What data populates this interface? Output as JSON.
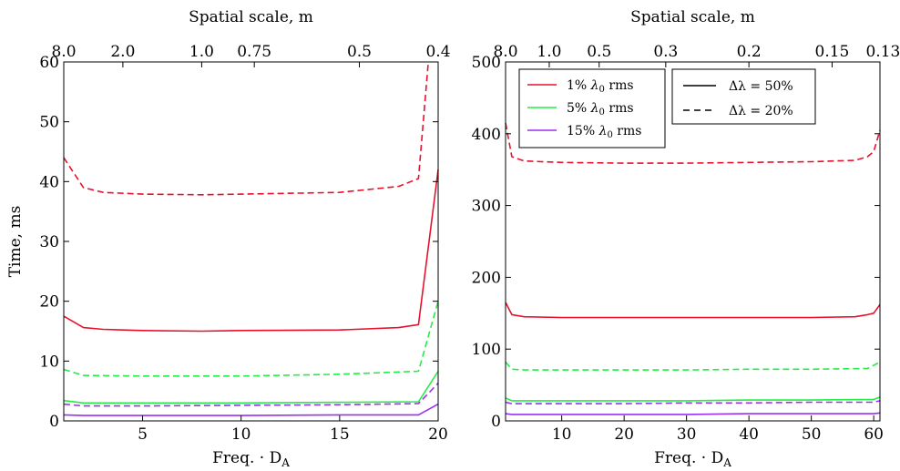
{
  "chart_data": [
    {
      "type": "line",
      "xlabel": "Freq. · D",
      "xlabel_sub": "A",
      "ylabel": "Time, ms",
      "top_axis_label": "Spatial scale, m",
      "xlim": [
        1,
        20
      ],
      "ylim": [
        0,
        60
      ],
      "xticks": [
        5,
        10,
        15,
        20
      ],
      "yticks": [
        0,
        10,
        20,
        30,
        40,
        50,
        60
      ],
      "top_ticks": [
        {
          "x": 1,
          "label": "8.0"
        },
        {
          "x": 4,
          "label": "2.0"
        },
        {
          "x": 8,
          "label": "1.0"
        },
        {
          "x": 10.67,
          "label": "0.75"
        },
        {
          "x": 16,
          "label": "0.5"
        },
        {
          "x": 20,
          "label": "0.4"
        }
      ],
      "colors": {
        "1%": "#e8112d",
        "5%": "#22ee44",
        "15%": "#9b30ef"
      },
      "series": [
        {
          "noise": "1%",
          "style": "solid",
          "x": [
            1,
            2,
            3,
            5,
            8,
            10,
            15,
            18,
            19,
            20
          ],
          "y": [
            17.5,
            15.6,
            15.3,
            15.1,
            15.0,
            15.1,
            15.2,
            15.6,
            16.1,
            42.0
          ]
        },
        {
          "noise": "1%",
          "style": "dashed",
          "x": [
            1,
            2,
            3,
            5,
            8,
            10,
            15,
            18,
            19,
            19.5
          ],
          "y": [
            44.0,
            39.0,
            38.2,
            37.9,
            37.8,
            37.9,
            38.2,
            39.2,
            40.5,
            60.0
          ]
        },
        {
          "noise": "5%",
          "style": "solid",
          "x": [
            1,
            2,
            5,
            10,
            15,
            19,
            20
          ],
          "y": [
            3.4,
            3.0,
            3.0,
            3.0,
            3.1,
            3.2,
            8.3
          ]
        },
        {
          "noise": "5%",
          "style": "dashed",
          "x": [
            1,
            2,
            5,
            10,
            15,
            19,
            20
          ],
          "y": [
            8.6,
            7.6,
            7.5,
            7.5,
            7.8,
            8.3,
            20.0
          ]
        },
        {
          "noise": "15%",
          "style": "solid",
          "x": [
            1,
            2,
            5,
            10,
            15,
            19,
            20
          ],
          "y": [
            1.0,
            0.9,
            0.9,
            0.9,
            1.0,
            1.0,
            2.8
          ]
        },
        {
          "noise": "15%",
          "style": "dashed",
          "x": [
            1,
            2,
            5,
            10,
            15,
            19,
            20
          ],
          "y": [
            2.8,
            2.5,
            2.5,
            2.6,
            2.7,
            2.9,
            6.3
          ]
        }
      ]
    },
    {
      "type": "line",
      "xlabel": "Freq. · D",
      "xlabel_sub": "A",
      "ylabel": "",
      "top_axis_label": "Spatial scale, m",
      "xlim": [
        1,
        61
      ],
      "ylim": [
        0,
        500
      ],
      "xticks": [
        10,
        20,
        30,
        40,
        50,
        60
      ],
      "yticks": [
        0,
        100,
        200,
        300,
        400,
        500
      ],
      "top_ticks": [
        {
          "x": 1,
          "label": "8.0"
        },
        {
          "x": 8,
          "label": "1.0"
        },
        {
          "x": 16,
          "label": "0.5"
        },
        {
          "x": 26.67,
          "label": "0.3"
        },
        {
          "x": 40,
          "label": "0.2"
        },
        {
          "x": 53.33,
          "label": "0.15"
        },
        {
          "x": 61.5,
          "label": "0.13"
        }
      ],
      "legend": {
        "placement": "top-left",
        "items": [
          {
            "key": "1%",
            "label": "1%",
            "suffix": "rms"
          },
          {
            "key": "5%",
            "label": "5%",
            "suffix": "rms"
          },
          {
            "key": "15%",
            "label": "15%",
            "suffix": "rms"
          }
        ],
        "lambda_symbol": "λ",
        "lambda_sub": "0"
      },
      "style_legend": {
        "placement": "top-center",
        "items": [
          {
            "style": "solid",
            "label": "Δλ = 50%"
          },
          {
            "style": "dashed",
            "label": "Δλ = 20%"
          }
        ]
      },
      "series": [
        {
          "noise": "1%",
          "style": "solid",
          "x": [
            1,
            2,
            4,
            10,
            20,
            30,
            40,
            50,
            57,
            59,
            60,
            61
          ],
          "y": [
            165,
            148,
            145,
            144,
            144,
            144,
            144,
            144,
            145,
            148,
            150,
            162
          ]
        },
        {
          "noise": "1%",
          "style": "dashed",
          "x": [
            1,
            2,
            4,
            10,
            20,
            30,
            40,
            50,
            57,
            59,
            60,
            61
          ],
          "y": [
            415,
            368,
            362,
            360,
            359,
            359,
            360,
            361,
            363,
            368,
            375,
            405
          ]
        },
        {
          "noise": "5%",
          "style": "solid",
          "x": [
            1,
            2,
            4,
            10,
            20,
            30,
            40,
            50,
            60,
            61
          ],
          "y": [
            32,
            28,
            28,
            28,
            28,
            28,
            29,
            29,
            30,
            33
          ]
        },
        {
          "noise": "5%",
          "style": "dashed",
          "x": [
            1,
            2,
            4,
            10,
            20,
            30,
            40,
            50,
            59,
            61
          ],
          "y": [
            82,
            72,
            71,
            71,
            71,
            71,
            72,
            72,
            73,
            82
          ]
        },
        {
          "noise": "15%",
          "style": "solid",
          "x": [
            1,
            2,
            10,
            20,
            30,
            40,
            50,
            60,
            61
          ],
          "y": [
            10,
            9,
            9,
            9,
            9,
            10,
            10,
            10,
            11
          ]
        },
        {
          "noise": "15%",
          "style": "dashed",
          "x": [
            1,
            2,
            10,
            20,
            30,
            40,
            50,
            60,
            61
          ],
          "y": [
            26,
            24,
            24,
            24,
            25,
            25,
            26,
            26,
            28
          ]
        }
      ]
    }
  ]
}
